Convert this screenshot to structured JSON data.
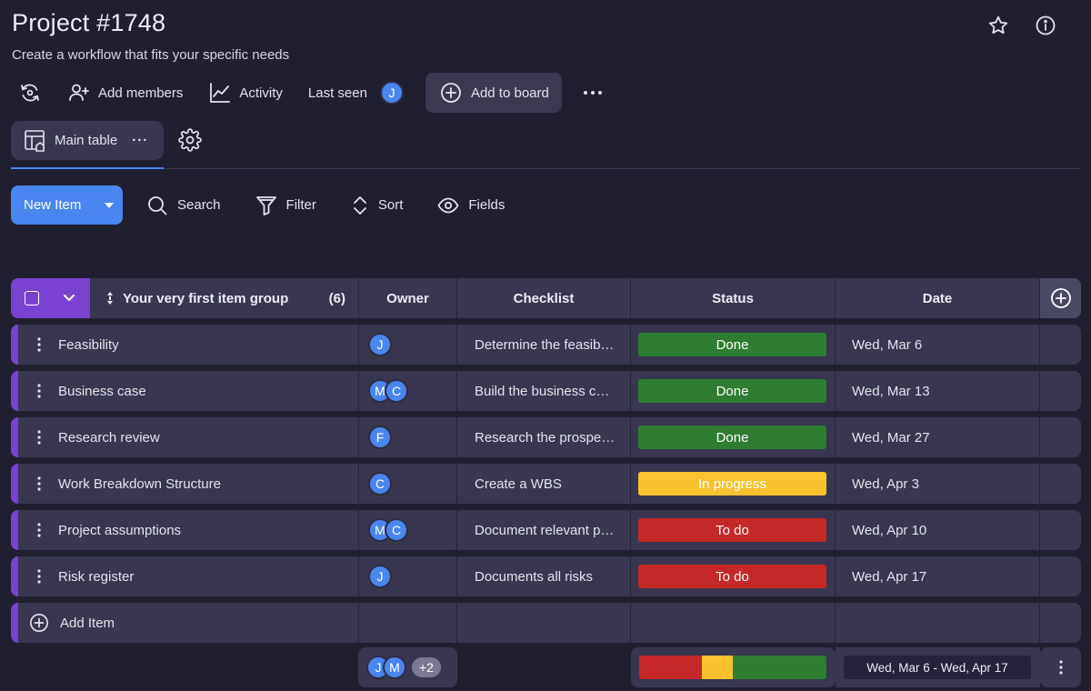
{
  "project": {
    "title": "Project #1748",
    "subtitle": "Create a workflow that fits your specific needs"
  },
  "toolbar": {
    "add_members": "Add members",
    "activity": "Activity",
    "last_seen": "Last seen",
    "last_seen_avatar": "J",
    "add_to_board": "Add to board"
  },
  "view": {
    "tab_label": "Main table",
    "tab_more": "···"
  },
  "actions": {
    "new_item": "New Item",
    "search": "Search",
    "filter": "Filter",
    "sort": "Sort",
    "fields": "Fields"
  },
  "group": {
    "name": "Your very first item group",
    "count": "(6)",
    "columns": {
      "owner": "Owner",
      "checklist": "Checklist",
      "status": "Status",
      "date": "Date"
    },
    "items": [
      {
        "name": "Feasibility",
        "owners": [
          "J"
        ],
        "checklist": "Determine the feasibility",
        "status": "Done",
        "date": "Wed, Mar 6"
      },
      {
        "name": "Business case",
        "owners": [
          "M",
          "C"
        ],
        "checklist": "Build the business case",
        "status": "Done",
        "date": "Wed, Mar 13"
      },
      {
        "name": "Research review",
        "owners": [
          "F"
        ],
        "checklist": "Research the prospects",
        "status": "Done",
        "date": "Wed, Mar 27"
      },
      {
        "name": "Work Breakdown Structure",
        "owners": [
          "C"
        ],
        "checklist": "Create a WBS",
        "status": "In progress",
        "date": "Wed, Apr 3"
      },
      {
        "name": "Project assumptions",
        "owners": [
          "M",
          "C"
        ],
        "checklist": "Document relevant project assumptions",
        "status": "To do",
        "date": "Wed, Apr 10"
      },
      {
        "name": "Risk register",
        "owners": [
          "J"
        ],
        "checklist": "Documents all risks",
        "status": "To do",
        "date": "Wed, Apr 17"
      }
    ],
    "add_item": "Add Item"
  },
  "summary": {
    "owners": [
      "J",
      "M"
    ],
    "more_owners": "+2",
    "status_breakdown": [
      {
        "status": "To do",
        "fraction": 0.333
      },
      {
        "status": "In progress",
        "fraction": 0.167
      },
      {
        "status": "Done",
        "fraction": 0.5
      }
    ],
    "date_range": "Wed, Mar 6 - Wed, Apr 17"
  },
  "colors": {
    "accent": "#4a86f0",
    "group": "#7a42d0",
    "done": "#2e7d32",
    "in_progress": "#f9c22e",
    "to_do": "#c62828"
  }
}
